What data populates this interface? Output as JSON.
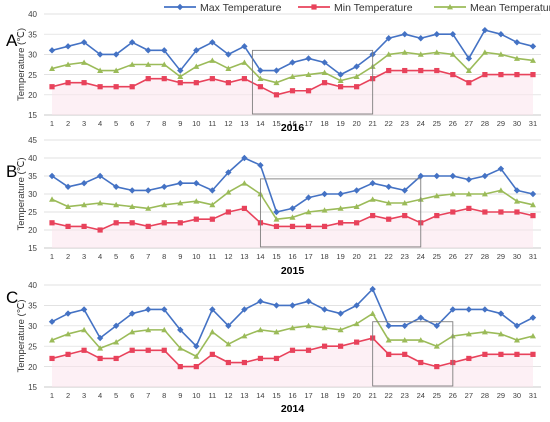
{
  "legend": [
    {
      "name": "Max Temperature",
      "color": "#4472C4",
      "marker": "diamond"
    },
    {
      "name": "Min Temperature",
      "color": "#E8425B",
      "marker": "square"
    },
    {
      "name": "Mean Temperature",
      "color": "#9BBB59",
      "marker": "triangle"
    }
  ],
  "chart_data": [
    {
      "type": "line",
      "panel_label": "A",
      "title": "2016",
      "ylabel": "Temperature (℃)",
      "ylim": [
        15,
        40
      ],
      "yticks": [
        15,
        20,
        25,
        30,
        35,
        40
      ],
      "x": [
        1,
        2,
        3,
        4,
        5,
        6,
        7,
        8,
        9,
        10,
        11,
        12,
        13,
        14,
        15,
        16,
        17,
        18,
        19,
        20,
        21,
        22,
        23,
        24,
        25,
        26,
        27,
        28,
        29,
        30,
        31
      ],
      "highlight_range": [
        14,
        20.5
      ],
      "series": [
        {
          "name": "Max Temperature",
          "values": [
            31,
            32,
            33,
            30,
            30,
            33,
            31,
            31,
            26,
            31,
            33,
            30,
            32,
            26,
            26,
            28,
            29,
            28,
            25,
            27,
            30,
            34,
            35,
            34,
            35,
            35,
            29,
            36,
            35,
            33,
            32
          ]
        },
        {
          "name": "Min Temperature",
          "values": [
            22,
            23,
            23,
            22,
            22,
            22,
            24,
            24,
            23,
            23,
            24,
            23,
            24,
            22,
            20,
            21,
            21,
            23,
            22,
            22,
            24,
            26,
            26,
            26,
            26,
            25,
            23,
            25,
            25,
            25,
            25
          ]
        },
        {
          "name": "Mean Temperature",
          "values": [
            26.5,
            27.5,
            28,
            26,
            26,
            27.5,
            27.5,
            27.5,
            24.5,
            27,
            28.5,
            26.5,
            28,
            24,
            23,
            24.5,
            25,
            25.5,
            23.5,
            24.5,
            27,
            30,
            30.5,
            30,
            30.5,
            30,
            26,
            30.5,
            30,
            29,
            28.5
          ]
        }
      ]
    },
    {
      "type": "line",
      "panel_label": "B",
      "title": "2015",
      "ylabel": "Temperature (℃)",
      "ylim": [
        15,
        45
      ],
      "yticks": [
        15,
        20,
        25,
        30,
        35,
        40,
        45
      ],
      "x": [
        1,
        2,
        3,
        4,
        5,
        6,
        7,
        8,
        9,
        10,
        11,
        12,
        13,
        14,
        15,
        16,
        17,
        18,
        19,
        20,
        21,
        22,
        23,
        24,
        25,
        26,
        27,
        28,
        29,
        30,
        31
      ],
      "highlight_range": [
        14.5,
        23.5
      ],
      "series": [
        {
          "name": "Max Temperature",
          "values": [
            35,
            32,
            33,
            35,
            32,
            31,
            31,
            32,
            33,
            33,
            31,
            36,
            40,
            38,
            25,
            26,
            29,
            30,
            30,
            31,
            33,
            32,
            31,
            35,
            35,
            35,
            34,
            35,
            37,
            31,
            30
          ]
        },
        {
          "name": "Min Temperature",
          "values": [
            22,
            21,
            21,
            20,
            22,
            22,
            21,
            22,
            22,
            23,
            23,
            25,
            26,
            22,
            21,
            21,
            21,
            21,
            22,
            22,
            24,
            23,
            24,
            22,
            24,
            25,
            26,
            25,
            25,
            25,
            24
          ]
        },
        {
          "name": "Mean Temperature",
          "values": [
            28.5,
            26.5,
            27,
            27.5,
            27,
            26.5,
            26,
            27,
            27.5,
            28,
            27,
            30.5,
            33,
            30,
            23,
            23.5,
            25,
            25.5,
            26,
            26.5,
            28.5,
            27.5,
            27.5,
            28.5,
            29.5,
            30,
            30,
            30,
            31,
            28,
            27
          ]
        }
      ]
    },
    {
      "type": "line",
      "panel_label": "C",
      "title": "2014",
      "ylabel": "Temperature (℃)",
      "ylim": [
        15,
        40
      ],
      "yticks": [
        15,
        20,
        25,
        30,
        35,
        40
      ],
      "x": [
        1,
        2,
        3,
        4,
        5,
        6,
        7,
        8,
        9,
        10,
        11,
        12,
        13,
        14,
        15,
        16,
        17,
        18,
        19,
        20,
        21,
        22,
        23,
        24,
        25,
        26,
        27,
        28,
        29,
        30,
        31
      ],
      "highlight_range": [
        21.5,
        25.5
      ],
      "series": [
        {
          "name": "Max Temperature",
          "values": [
            31,
            33,
            34,
            27,
            30,
            33,
            34,
            34,
            29,
            25,
            34,
            30,
            34,
            36,
            35,
            35,
            36,
            34,
            33,
            35,
            39,
            30,
            30,
            32,
            30,
            34,
            34,
            34,
            33,
            30,
            32
          ]
        },
        {
          "name": "Min Temperature",
          "values": [
            22,
            23,
            24,
            22,
            22,
            24,
            24,
            24,
            20,
            20,
            23,
            21,
            21,
            22,
            22,
            24,
            24,
            25,
            25,
            26,
            27,
            23,
            23,
            21,
            20,
            21,
            22,
            23,
            23,
            23,
            23
          ]
        },
        {
          "name": "Mean Temperature",
          "values": [
            26.5,
            28,
            29,
            24.5,
            26,
            28.5,
            29,
            29,
            24.5,
            22.5,
            28.5,
            25.5,
            27.5,
            29,
            28.5,
            29.5,
            30,
            29.5,
            29,
            30.5,
            33,
            26.5,
            26.5,
            26.5,
            25,
            27.5,
            28,
            28.5,
            28,
            26.5,
            27.5
          ]
        }
      ]
    }
  ]
}
